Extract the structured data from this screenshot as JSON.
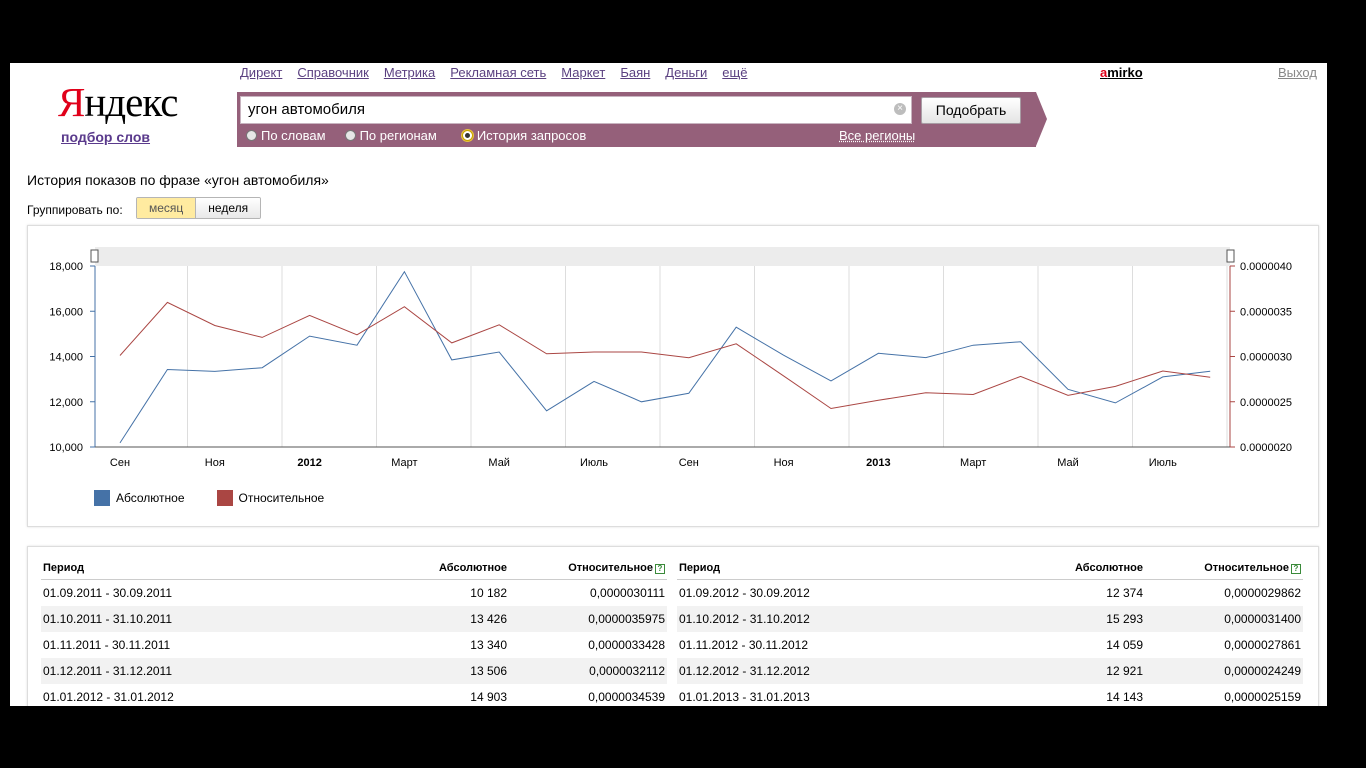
{
  "logo": {
    "first": "Я",
    "rest": "ндекс",
    "sub": "подбор слов"
  },
  "services": [
    "Директ",
    "Справочник",
    "Метрика",
    "Рекламная сеть",
    "Маркет",
    "Баян",
    "Деньги",
    "ещё"
  ],
  "user": {
    "first": "a",
    "rest": "mirko"
  },
  "logout": "Выход",
  "search": {
    "query": "угон автомобиля",
    "submit": "Подобрать",
    "modes": [
      {
        "label": "По словам",
        "selected": false
      },
      {
        "label": "По регионам",
        "selected": false
      },
      {
        "label": "История запросов",
        "selected": true
      }
    ],
    "regions": "Все регионы"
  },
  "history_title": "История показов по фразе «угон автомобиля»",
  "group": {
    "label": "Группировать по:",
    "options": [
      "месяц",
      "неделя"
    ],
    "selected": "месяц"
  },
  "colors": {
    "absolute": "#4572a7",
    "relative": "#aa4643",
    "search_bar": "#95607a",
    "grid": "#dddddd"
  },
  "chart_data": {
    "type": "line",
    "x_ticks": [
      "Сен",
      "Ноя",
      "2012",
      "Март",
      "Май",
      "Июль",
      "Сен",
      "Ноя",
      "2013",
      "Март",
      "Май",
      "Июль"
    ],
    "x_tick_bold": [
      false,
      false,
      true,
      false,
      false,
      false,
      false,
      false,
      true,
      false,
      false,
      false
    ],
    "y_left_ticks": [
      "10,000",
      "12,000",
      "14,000",
      "16,000",
      "18,000"
    ],
    "y_right_ticks": [
      "0.0000020",
      "0.0000025",
      "0.0000030",
      "0.0000035",
      "0.0000040"
    ],
    "ylim_left": [
      10000,
      18000
    ],
    "ylim_right": [
      2e-06,
      4e-06
    ],
    "months": [
      "2011-09",
      "2011-10",
      "2011-11",
      "2011-12",
      "2012-01",
      "2012-02",
      "2012-03",
      "2012-04",
      "2012-05",
      "2012-06",
      "2012-07",
      "2012-08",
      "2012-09",
      "2012-10",
      "2012-11",
      "2012-12",
      "2013-01",
      "2013-02",
      "2013-03",
      "2013-04",
      "2013-05",
      "2013-06",
      "2013-07",
      "2013-08"
    ],
    "series": [
      {
        "name": "Абсолютное",
        "axis": "left",
        "values": [
          10182,
          13426,
          13340,
          13506,
          14903,
          14500,
          17750,
          13850,
          14200,
          11600,
          12900,
          12000,
          12374,
          15293,
          14059,
          12921,
          14143,
          13950,
          14500,
          14650,
          12550,
          11950,
          13100,
          13350
        ]
      },
      {
        "name": "Относительное",
        "axis": "right",
        "values": [
          3.0111e-06,
          3.5975e-06,
          3.3428e-06,
          3.2112e-06,
          3.4539e-06,
          3.24e-06,
          3.55e-06,
          3.15e-06,
          3.35e-06,
          3.03e-06,
          3.05e-06,
          3.05e-06,
          2.9862e-06,
          3.14e-06,
          2.7861e-06,
          2.4249e-06,
          2.5159e-06,
          2.6e-06,
          2.58e-06,
          2.78e-06,
          2.57e-06,
          2.67e-06,
          2.84e-06,
          2.77e-06
        ]
      }
    ],
    "legend_position": "bottom-left"
  },
  "table": {
    "headers": {
      "period": "Период",
      "absolute": "Абсолютное",
      "relative": "Относительное",
      "help": "?"
    },
    "left": [
      {
        "period": "01.09.2011 - 30.09.2011",
        "absolute": "10 182",
        "relative": "0,0000030111"
      },
      {
        "period": "01.10.2011 - 31.10.2011",
        "absolute": "13 426",
        "relative": "0,0000035975"
      },
      {
        "period": "01.11.2011 - 30.11.2011",
        "absolute": "13 340",
        "relative": "0,0000033428"
      },
      {
        "period": "01.12.2011 - 31.12.2011",
        "absolute": "13 506",
        "relative": "0,0000032112"
      },
      {
        "period": "01.01.2012 - 31.01.2012",
        "absolute": "14 903",
        "relative": "0,0000034539"
      }
    ],
    "right": [
      {
        "period": "01.09.2012 - 30.09.2012",
        "absolute": "12 374",
        "relative": "0,0000029862"
      },
      {
        "period": "01.10.2012 - 31.10.2012",
        "absolute": "15 293",
        "relative": "0,0000031400"
      },
      {
        "period": "01.11.2012 - 30.11.2012",
        "absolute": "14 059",
        "relative": "0,0000027861"
      },
      {
        "period": "01.12.2012 - 31.12.2012",
        "absolute": "12 921",
        "relative": "0,0000024249"
      },
      {
        "period": "01.01.2013 - 31.01.2013",
        "absolute": "14 143",
        "relative": "0,0000025159"
      }
    ]
  }
}
